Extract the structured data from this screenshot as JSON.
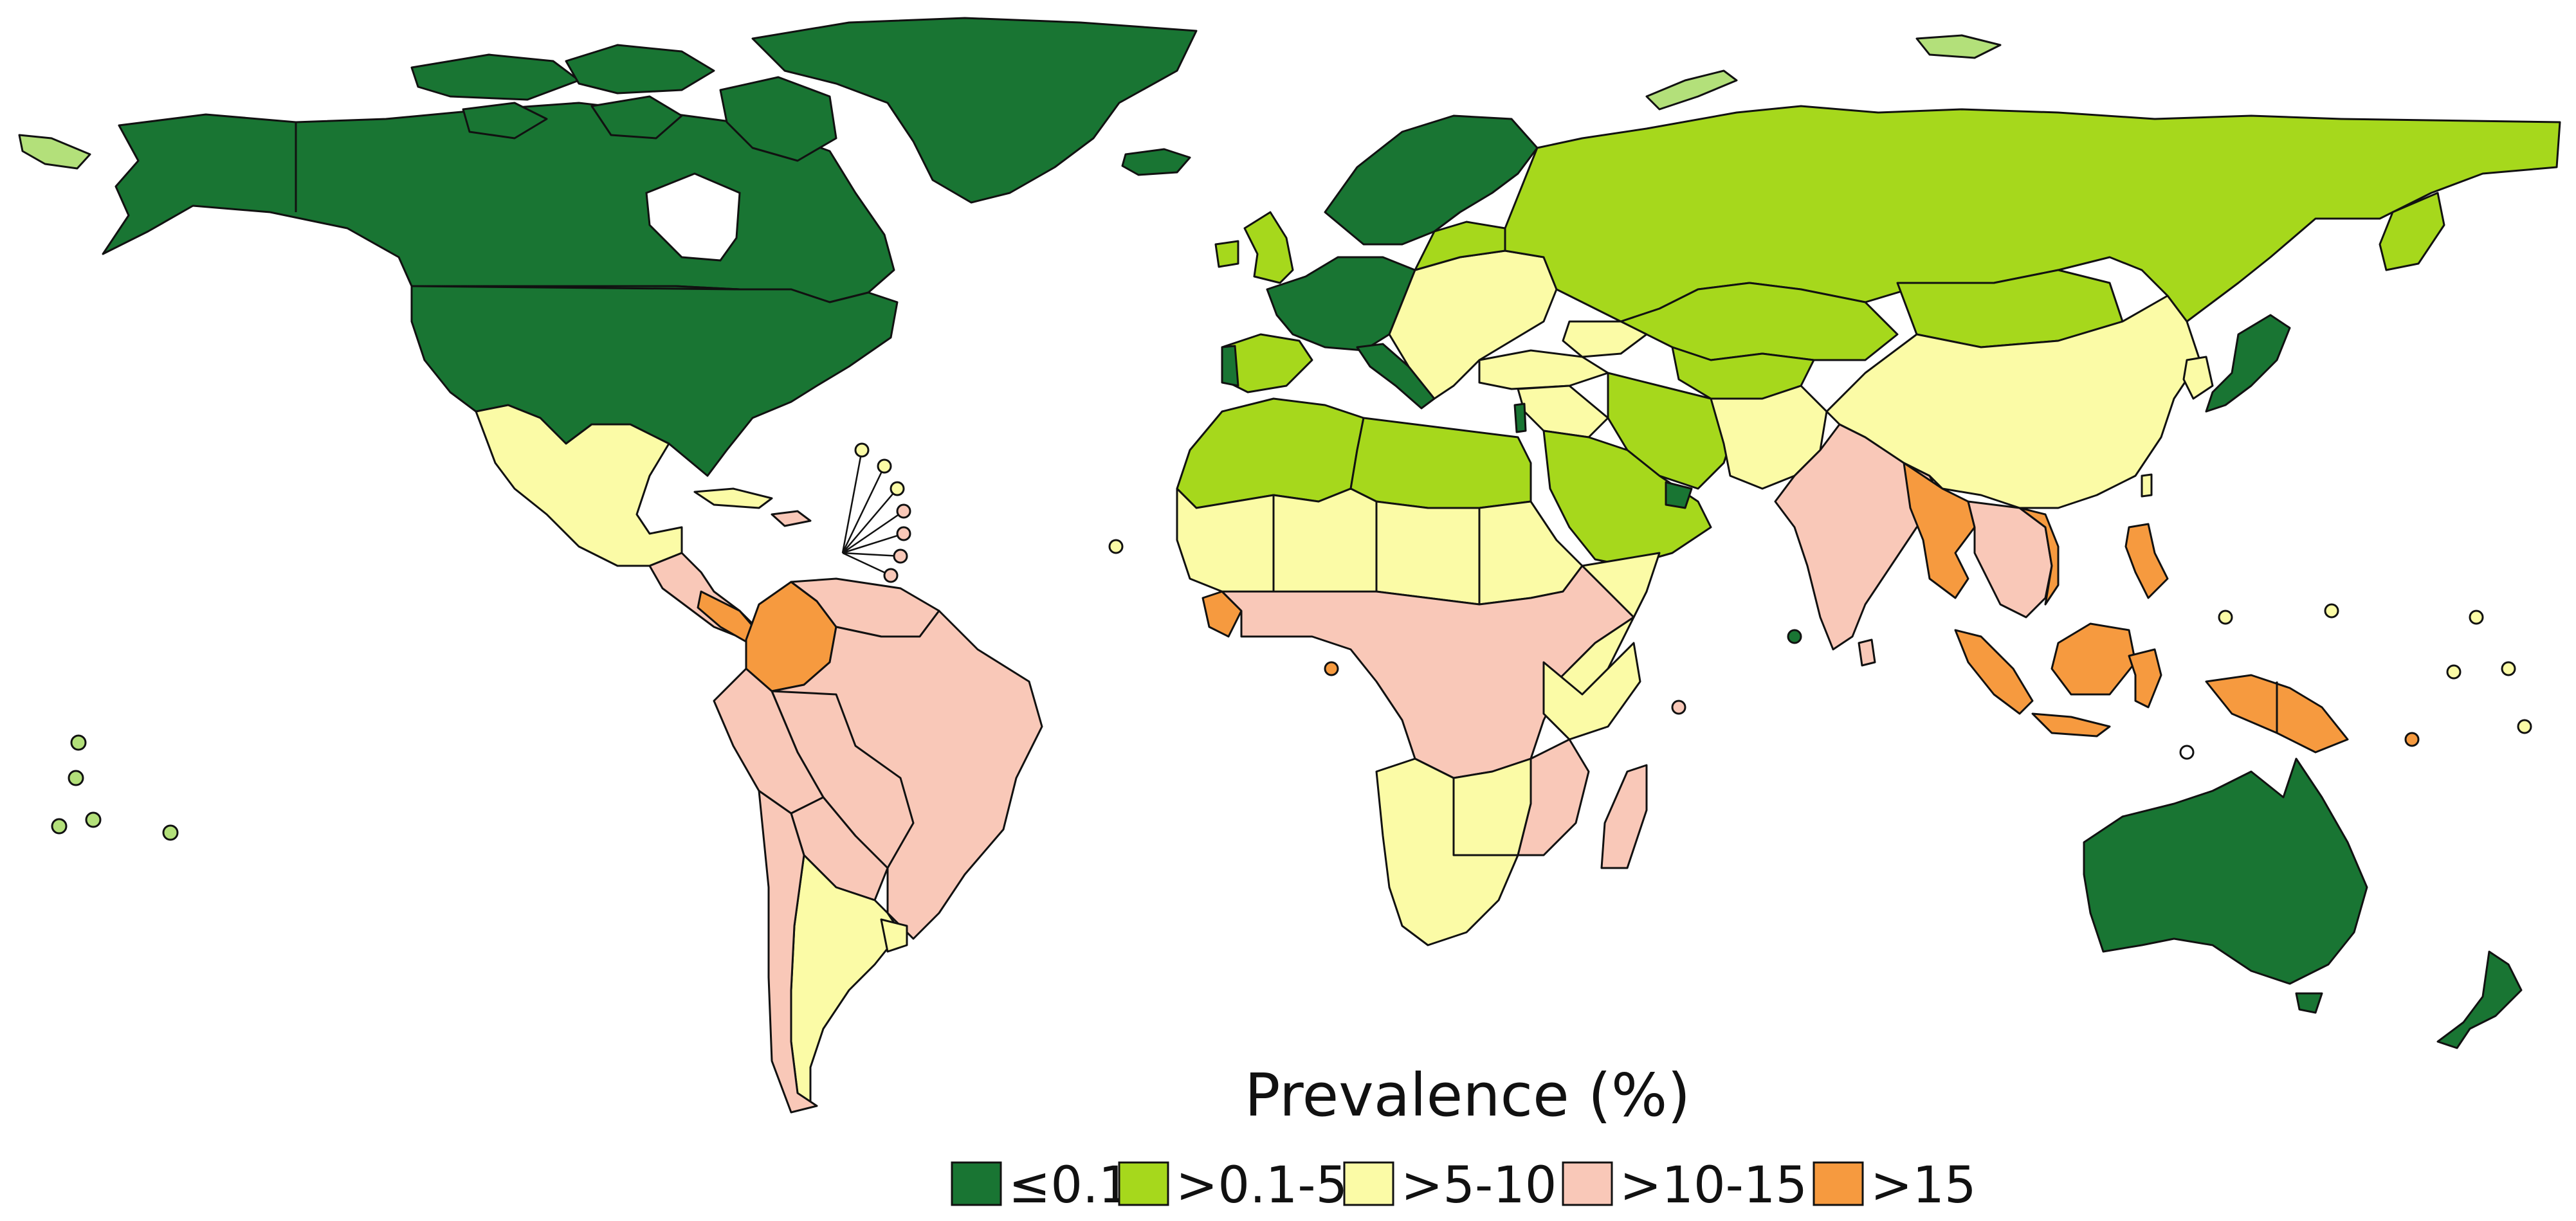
{
  "legend": {
    "title": "Prevalence (%)",
    "items": [
      {
        "label": "≤0.1",
        "color": "#197533"
      },
      {
        "label": ">0.1-5",
        "color": "#a6d81c"
      },
      {
        "label": ">5-10",
        "color": "#fbfba6"
      },
      {
        "label": ">10-15",
        "color": "#f9c8b8"
      },
      {
        "label": ">15",
        "color": "#f69a3f"
      }
    ]
  },
  "colors": {
    "category_0": "#197533",
    "category_1": "#a6d81c",
    "category_1_light": "#b3e07a",
    "category_2": "#fbfba6",
    "category_3": "#f9c8b8",
    "category_4": "#f69a3f",
    "border": "#111111"
  }
}
